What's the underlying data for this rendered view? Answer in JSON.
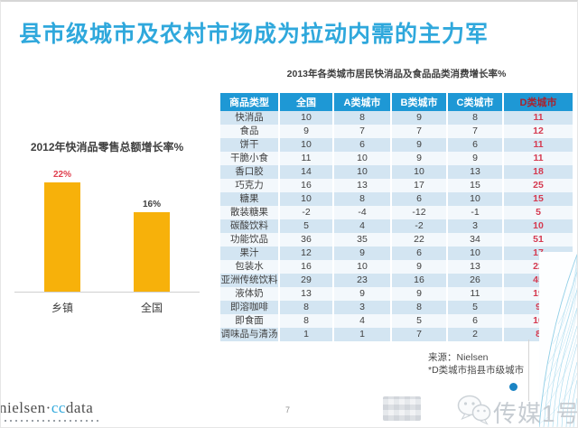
{
  "colors": {
    "title_blue": "#2FA8DC",
    "header_blue": "#1E98D5",
    "row_alt_blue": "#D3E5F2",
    "row_alt_light": "#F3F8FC",
    "highlight_red": "#D53A50",
    "d_header_red": "#A8232E",
    "text_dark": "#3E3E3E",
    "dot_blue": "#1B84C4"
  },
  "slide": {
    "title": "县市级城市及农村市场成为拉动内需的主力军",
    "page_number": "7"
  },
  "chart_data": [
    {
      "type": "bar",
      "title": "2012年快消品零售总额增长率%",
      "categories": [
        "乡镇",
        "全国"
      ],
      "values": [
        22,
        16
      ],
      "value_labels": [
        "22%",
        "16%"
      ],
      "ylabel": "",
      "xlabel": "",
      "ylim": [
        0,
        25
      ],
      "grid": false,
      "bar_color": "#F7B10A",
      "value_label_colors": [
        "#E0404F",
        "#3E3E3E"
      ]
    },
    {
      "type": "table",
      "title": "2013年各类城市居民快消品及食品品类消费增长率%",
      "columns": [
        "商品类型",
        "全国",
        "A类城市",
        "B类城市",
        "C类城市",
        "D类城市"
      ],
      "highlight_column": "D类城市",
      "rows": [
        [
          "快消品",
          10,
          8,
          9,
          8,
          11
        ],
        [
          "食品",
          9,
          7,
          7,
          7,
          12
        ],
        [
          "饼干",
          10,
          6,
          9,
          6,
          11
        ],
        [
          "干脆小食",
          11,
          10,
          9,
          9,
          11
        ],
        [
          "香口胶",
          14,
          10,
          10,
          13,
          18
        ],
        [
          "巧克力",
          16,
          13,
          17,
          15,
          25
        ],
        [
          "糖果",
          10,
          8,
          6,
          10,
          15
        ],
        [
          "散装糖果",
          -2,
          -4,
          -12,
          -1,
          5
        ],
        [
          "碳酸饮料",
          5,
          4,
          -2,
          3,
          10
        ],
        [
          "功能饮品",
          36,
          35,
          22,
          34,
          51
        ],
        [
          "果汁",
          12,
          9,
          6,
          10,
          17
        ],
        [
          "包装水",
          16,
          10,
          9,
          13,
          22
        ],
        [
          "亚洲传统饮料",
          29,
          23,
          16,
          26,
          45
        ],
        [
          "液体奶",
          13,
          9,
          9,
          11,
          19
        ],
        [
          "即溶咖啡",
          8,
          3,
          8,
          5,
          9
        ],
        [
          "即食面",
          8,
          4,
          5,
          6,
          10
        ],
        [
          "调味品与清汤",
          1,
          1,
          7,
          2,
          8
        ]
      ]
    }
  ],
  "footer": {
    "source_line1": "来源：Nielsen",
    "source_line2": "*D类城市指县市级城市",
    "logo_part1": "nielsen",
    "logo_dot": "·",
    "logo_part2": "cc",
    "logo_part3": "data",
    "watermark_text": "传媒1号"
  }
}
